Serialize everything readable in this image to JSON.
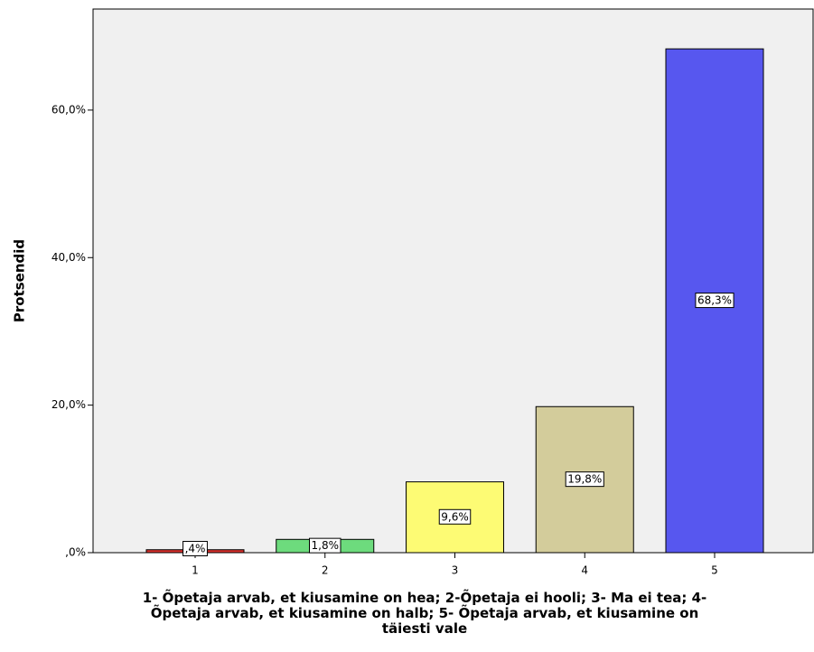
{
  "chart_data": {
    "type": "bar",
    "categories": [
      "1",
      "2",
      "3",
      "4",
      "5"
    ],
    "values": [
      0.4,
      1.8,
      9.6,
      19.8,
      68.3
    ],
    "value_labels": [
      ",4%",
      "1,8%",
      "9,6%",
      "19,8%",
      "68,3%"
    ],
    "colors": [
      "#d9312c",
      "#6ddb7d",
      "#fdfb74",
      "#d3cc9b",
      "#5757ef"
    ],
    "ylabel": "Protsendid",
    "xlabel": "1- Õpetaja arvab, et kiusamine on hea; 2-Õpetaja ei hooli; 3- Ma ei tea; 4-Õpetaja arvab, et kiusamine on halb; 5- Õpetaja arvab, et kiusamine on täiesti vale",
    "ylim": [
      0,
      73.7
    ],
    "yticks": [
      {
        "value": 0,
        "label": ",0%"
      },
      {
        "value": 20,
        "label": "20,0%"
      },
      {
        "value": 40,
        "label": "40,0%"
      },
      {
        "value": 60,
        "label": "60,0%"
      }
    ]
  }
}
